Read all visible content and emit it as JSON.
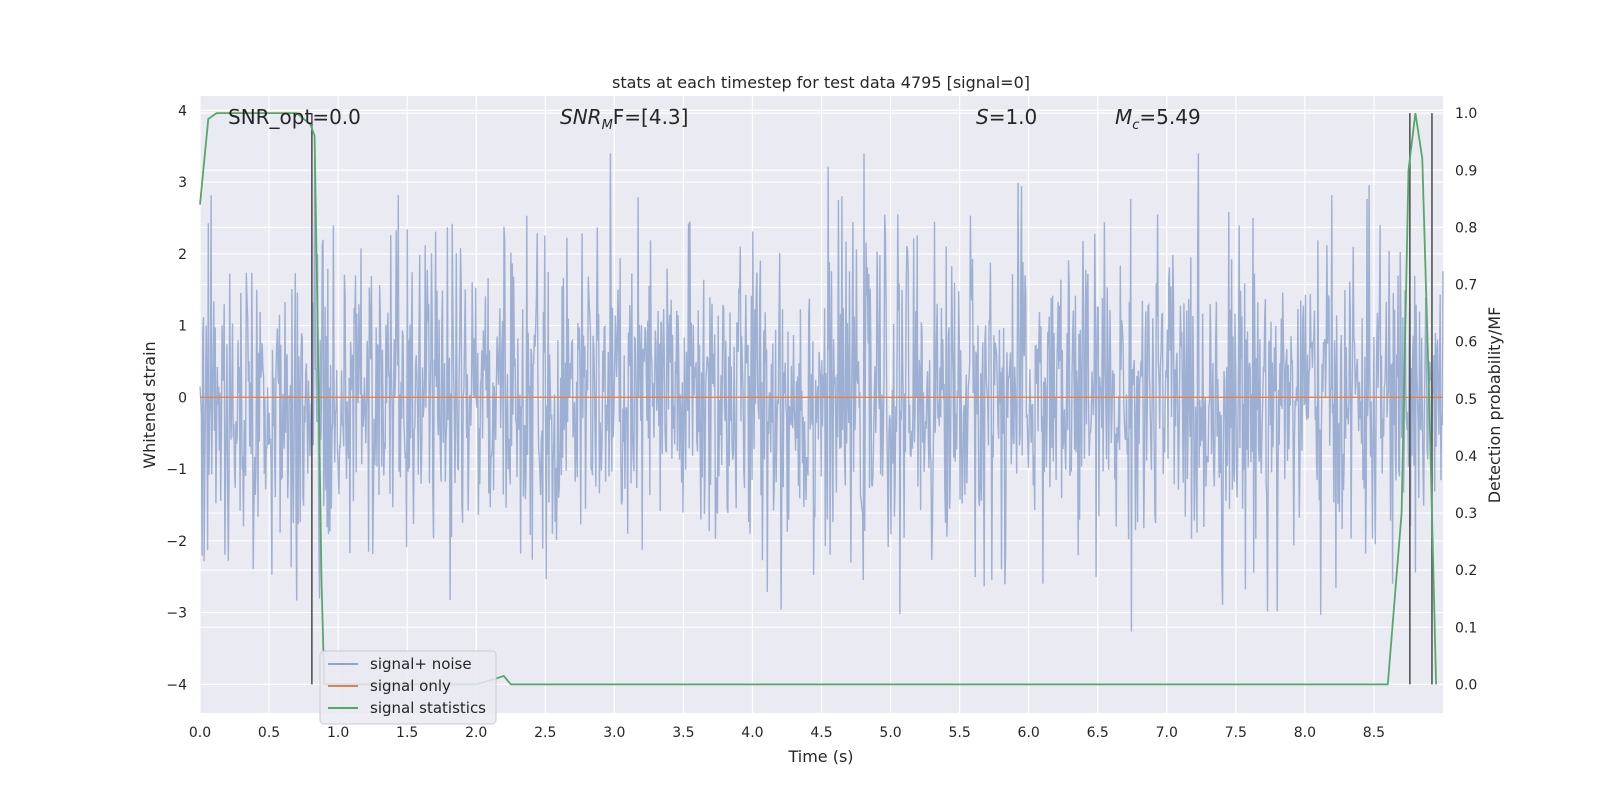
{
  "chart_data": {
    "type": "line",
    "title": "stats at each timestep for test data 4795 [signal=0]",
    "xlabel": "Time (s)",
    "ylabel": "Whitened strain",
    "y2label": "Detection probability/MF",
    "xlim": [
      0,
      9.0
    ],
    "ylim": [
      -4.4,
      4.2
    ],
    "y2lim": [
      -0.05,
      1.03
    ],
    "xticks": [
      "0.0",
      "0.5",
      "1.0",
      "1.5",
      "2.0",
      "2.5",
      "3.0",
      "3.5",
      "4.0",
      "4.5",
      "5.0",
      "5.5",
      "6.0",
      "6.5",
      "7.0",
      "7.5",
      "8.0",
      "8.5"
    ],
    "xtick_values": [
      0,
      0.5,
      1.0,
      1.5,
      2.0,
      2.5,
      3.0,
      3.5,
      4.0,
      4.5,
      5.0,
      5.5,
      6.0,
      6.5,
      7.0,
      7.5,
      8.0,
      8.5
    ],
    "yticks": [
      "4",
      "3",
      "2",
      "1",
      "0",
      "−1",
      "−2",
      "−3",
      "−4"
    ],
    "ytick_values": [
      4,
      3,
      2,
      1,
      0,
      -1,
      -2,
      -3,
      -4
    ],
    "y2ticks": [
      "1.0",
      "0.9",
      "0.8",
      "0.7",
      "0.6",
      "0.5",
      "0.4",
      "0.3",
      "0.2",
      "0.1",
      "0.0"
    ],
    "y2tick_values": [
      1.0,
      0.9,
      0.8,
      0.7,
      0.6,
      0.5,
      0.4,
      0.3,
      0.2,
      0.1,
      0.0
    ],
    "grid": true,
    "legend_position": "bottom-left",
    "annotations": {
      "snr_opt": "SNR_opt=0.0",
      "snr_mf_prefix": "SNR",
      "snr_mf_sub": "M",
      "snr_mf_suffix": "F=[4.3]",
      "s_prefix": "S",
      "s_suffix": "=1.0",
      "mc_prefix": "M",
      "mc_sub": "c",
      "mc_suffix": "=5.49"
    },
    "series": [
      {
        "name": "signal+ noise",
        "color": "#8fa4cc",
        "noise_std": 0.8,
        "approx_range": [
          -3.7,
          3.4
        ]
      },
      {
        "name": "signal only",
        "color": "#dd8452",
        "values": [
          0
        ]
      },
      {
        "name": "signal statistics",
        "color": "#55a868",
        "x": [
          0.0,
          0.06,
          0.12,
          0.2,
          0.4,
          0.6,
          0.7,
          0.8,
          0.83,
          0.86,
          0.88,
          0.9,
          1.0,
          1.5,
          2.0,
          2.14,
          2.2,
          2.25,
          3.0,
          4.0,
          5.0,
          6.0,
          7.0,
          8.0,
          8.6,
          8.7,
          8.75,
          8.8,
          8.85,
          8.9,
          8.95
        ],
        "y": [
          0.84,
          0.99,
          1.0,
          1.0,
          1.0,
          1.0,
          1.0,
          0.98,
          0.96,
          0.5,
          0.18,
          0.0,
          0.0,
          0.0,
          0.0,
          0.01,
          0.015,
          0.0,
          0.0,
          0.0,
          0.0,
          0.0,
          0.0,
          0.0,
          0.0,
          0.3,
          0.9,
          1.0,
          0.92,
          0.5,
          0.0
        ]
      }
    ],
    "vertical_lines_x": [
      0.81,
      8.76,
      8.92
    ],
    "legend": [
      "signal+ noise",
      "signal only",
      "signal statistics"
    ]
  }
}
